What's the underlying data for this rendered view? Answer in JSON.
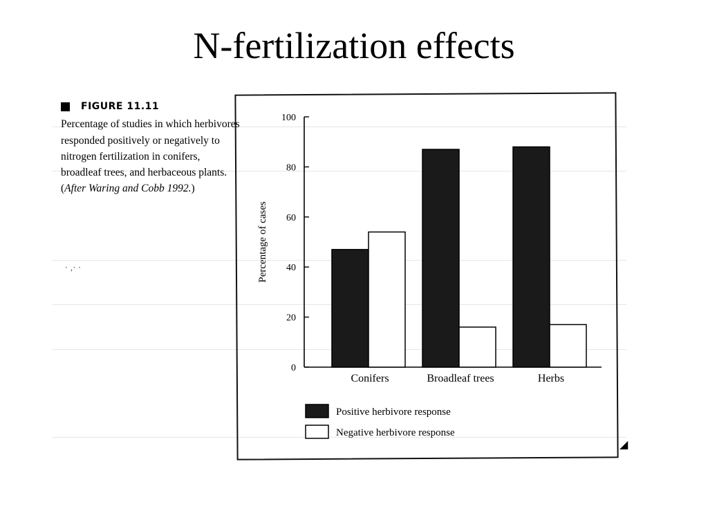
{
  "slide": {
    "title": "N-fertilization effects"
  },
  "caption": {
    "figure_label": "FIGURE 11.11",
    "text": "Percentage of studies in which herbivores responded positively or negatively to nitrogen fertilization in conifers, broadleaf trees, and herbaceous plants. (",
    "citation": "After Waring and Cobb 1992.",
    "closing": ")"
  },
  "colors": {
    "positive": "#1a1a1a",
    "negative": "#ffffff",
    "axis": "#000000"
  },
  "chart_data": {
    "type": "bar",
    "categories": [
      "Conifers",
      "Broadleaf trees",
      "Herbs"
    ],
    "series": [
      {
        "name": "Positive herbivore response",
        "values": [
          47,
          87,
          88
        ]
      },
      {
        "name": "Negative herbivore response",
        "values": [
          54,
          16,
          17
        ]
      }
    ],
    "title": "",
    "xlabel": "",
    "ylabel": "Percentage of cases",
    "ylim": [
      0,
      100
    ],
    "yticks": [
      0,
      20,
      40,
      60,
      80,
      100
    ],
    "grid": false,
    "legend": "bottom-left"
  }
}
